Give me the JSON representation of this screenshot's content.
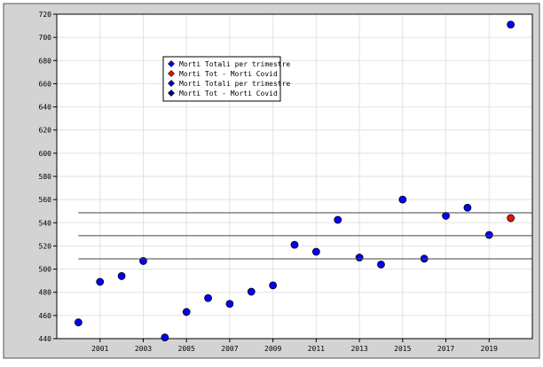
{
  "chart_data": {
    "type": "scatter",
    "series": [
      {
        "name": "Morti Totali per trimestre",
        "color": "#0000ff",
        "marker": "circle",
        "x": [
          2000,
          2001,
          2002,
          2003,
          2004,
          2005,
          2006,
          2007,
          2008,
          2009,
          2010,
          2011,
          2012,
          2013,
          2014,
          2015,
          2016,
          2017,
          2018,
          2019,
          2020
        ],
        "values": [
          454,
          489,
          494,
          507,
          441,
          463,
          475,
          470,
          480.5,
          486,
          521,
          515,
          542.5,
          510,
          504,
          560,
          509,
          546,
          553,
          529.5,
          711
        ]
      },
      {
        "name": "Morti Tot - Morti Covid",
        "color": "#ee1100",
        "marker": "circle",
        "x": [
          2020
        ],
        "values": [
          544
        ]
      },
      {
        "name": "Morti Totali per trimestre",
        "color": "#0000cc",
        "hline": [
          508.9,
          548.6
        ]
      },
      {
        "name": "Morti Tot - Morti Covid",
        "color": "#000080",
        "hline": [
          528.8
        ]
      }
    ],
    "xlim": [
      1999,
      2021
    ],
    "xticks": [
      2001,
      2003,
      2005,
      2007,
      2009,
      2011,
      2013,
      2015,
      2017,
      2019
    ],
    "ylim": [
      440,
      720
    ],
    "yticks": [
      440,
      460,
      480,
      500,
      520,
      540,
      560,
      580,
      600,
      620,
      640,
      660,
      680,
      700,
      720
    ],
    "grid": true
  }
}
